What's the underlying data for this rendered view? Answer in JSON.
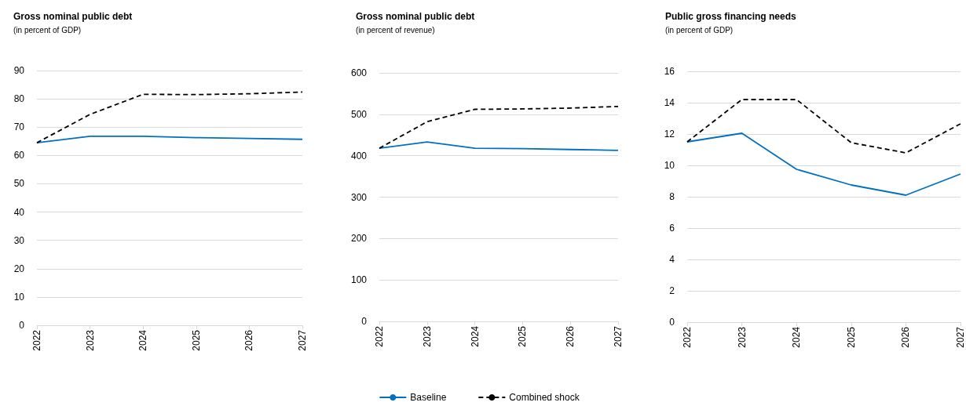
{
  "chart_data": [
    {
      "type": "line",
      "title": "Gross nominal public debt",
      "subtitle": "(in percent of GDP)",
      "categories": [
        "2022",
        "2023",
        "2024",
        "2025",
        "2026",
        "2027"
      ],
      "series": [
        {
          "color": "#0070c0",
          "line_style": "solid",
          "values": [
            64.5,
            66.8,
            66.8,
            66.3,
            66.0,
            65.7
          ]
        },
        {
          "color": "#000000",
          "line_style": "dashed",
          "values": [
            64.5,
            74.5,
            81.6,
            81.5,
            81.8,
            82.4
          ]
        }
      ],
      "ylim": [
        0,
        90
      ],
      "yticks": [
        0,
        10,
        20,
        30,
        40,
        50,
        60,
        70,
        80,
        90
      ],
      "grid": "y",
      "legend": false
    },
    {
      "type": "line",
      "title": "Gross nominal public debt",
      "subtitle": "(in percent of revenue)",
      "categories": [
        "2022",
        "2023",
        "2024",
        "2025",
        "2026",
        "2027"
      ],
      "series": [
        {
          "name": "Baseline",
          "color": "#0070c0",
          "line_style": "solid",
          "values": [
            418,
            433,
            418,
            417,
            415,
            413
          ]
        },
        {
          "name": "Combined shock",
          "color": "#000000",
          "line_style": "dashed",
          "values": [
            418,
            482,
            512,
            513,
            515,
            519
          ]
        }
      ],
      "ylim": [
        0,
        600
      ],
      "yticks": [
        0,
        100,
        200,
        300,
        400,
        500,
        600
      ],
      "grid": "y",
      "legend": "bottom"
    },
    {
      "type": "line",
      "title": "Public gross financing needs",
      "subtitle": "(in percent of GDP)",
      "categories": [
        "2022",
        "2023",
        "2024",
        "2025",
        "2026",
        "2027"
      ],
      "series": [
        {
          "color": "#0070c0",
          "line_style": "solid",
          "values": [
            11.5,
            12.05,
            9.75,
            8.75,
            8.1,
            9.45
          ]
        },
        {
          "color": "#000000",
          "line_style": "dashed",
          "values": [
            11.5,
            14.2,
            14.2,
            11.45,
            10.8,
            12.65
          ]
        }
      ],
      "ylim": [
        0,
        16
      ],
      "yticks": [
        0,
        2,
        4,
        6,
        8,
        10,
        12,
        14,
        16
      ],
      "grid": "y",
      "legend": false
    }
  ]
}
